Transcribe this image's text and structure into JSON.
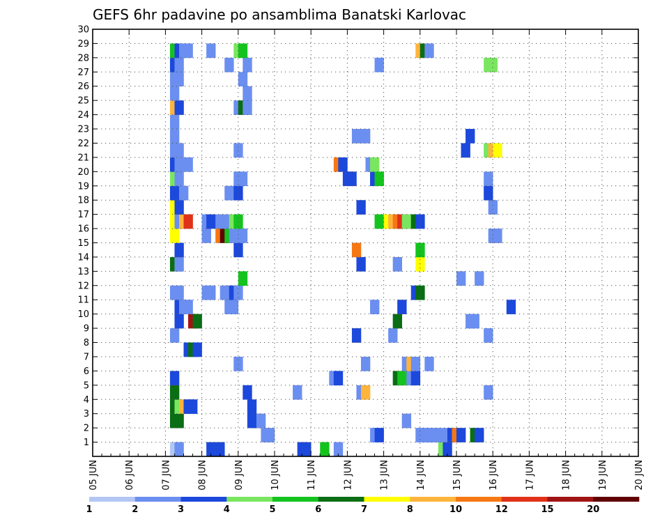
{
  "chart_data": {
    "type": "heatmap",
    "title": "GEFS 6hr padavine po ansamblima Banatski Karlovac",
    "xlabel": "",
    "ylabel": "",
    "x_ticks": [
      "05 JUN",
      "06 JUN",
      "07 JUN",
      "08 JUN",
      "09 JUN",
      "10 JUN",
      "11 JUN",
      "12 JUN",
      "13 JUN",
      "14 JUN",
      "15 JUN",
      "16 JUN",
      "17 JUN",
      "18 JUN",
      "19 JUN",
      "20 JUN"
    ],
    "xlim": [
      "05 JUN 00Z",
      "20 JUN 00Z"
    ],
    "time_step_hours": 6,
    "y_ticks": [
      "1",
      "2",
      "3",
      "4",
      "5",
      "6",
      "7",
      "8",
      "9",
      "10",
      "11",
      "12",
      "13",
      "14",
      "15",
      "16",
      "17",
      "18",
      "19",
      "20",
      "21",
      "22",
      "23",
      "24",
      "25",
      "26",
      "27",
      "28",
      "29",
      "30"
    ],
    "ylim": [
      0,
      30
    ],
    "grid": "dotted",
    "colorbar": {
      "tick_labels": [
        "1",
        "2",
        "3",
        "4",
        "5",
        "6",
        "7",
        "8",
        "10",
        "12",
        "15",
        "20"
      ],
      "bins": [
        {
          "range": "1-2",
          "color": "#b3c7f4"
        },
        {
          "range": "2-3",
          "color": "#6b8ff0"
        },
        {
          "range": "3-4",
          "color": "#1c48dc"
        },
        {
          "range": "4-5",
          "color": "#7ae660"
        },
        {
          "range": "5-6",
          "color": "#14c31e"
        },
        {
          "range": "6-7",
          "color": "#0a6e14"
        },
        {
          "range": "7-8",
          "color": "#ffff00"
        },
        {
          "range": "8-10",
          "color": "#ffb43c"
        },
        {
          "range": "10-12",
          "color": "#f57814"
        },
        {
          "range": "12-15",
          "color": "#e03218"
        },
        {
          "range": "15-20",
          "color": "#a01414"
        },
        {
          "range": "20+",
          "color": "#600000"
        }
      ]
    },
    "cells": [
      [
        0,
        17,
        0
      ],
      [
        0,
        18,
        1
      ],
      [
        0,
        25,
        2
      ],
      [
        0,
        27,
        2
      ],
      [
        0,
        45,
        2
      ],
      [
        0,
        46,
        2
      ],
      [
        0,
        50,
        4
      ],
      [
        0,
        53,
        1
      ],
      [
        0,
        76,
        3
      ],
      [
        0,
        77,
        2
      ],
      [
        1,
        37,
        1
      ],
      [
        1,
        38,
        1
      ],
      [
        1,
        61,
        1
      ],
      [
        1,
        62,
        2
      ],
      [
        1,
        71,
        1
      ],
      [
        1,
        72,
        1
      ],
      [
        1,
        73,
        1
      ],
      [
        1,
        74,
        1
      ],
      [
        1,
        75,
        1
      ],
      [
        1,
        77,
        1
      ],
      [
        1,
        78,
        2
      ],
      [
        1,
        79,
        8
      ],
      [
        1,
        80,
        2
      ],
      [
        1,
        83,
        5
      ],
      [
        1,
        84,
        2
      ],
      [
        2,
        17,
        5
      ],
      [
        2,
        18,
        5
      ],
      [
        2,
        34,
        2
      ],
      [
        2,
        35,
        2
      ],
      [
        2,
        36,
        1
      ],
      [
        2,
        68,
        1
      ],
      [
        3,
        17,
        5
      ],
      [
        3,
        18,
        3
      ],
      [
        3,
        19,
        7
      ],
      [
        3,
        20,
        2
      ],
      [
        3,
        21,
        2
      ],
      [
        3,
        34,
        2
      ],
      [
        4,
        17,
        5
      ],
      [
        4,
        33,
        2
      ],
      [
        4,
        44,
        1
      ],
      [
        4,
        58,
        1
      ],
      [
        4,
        59,
        7
      ],
      [
        4,
        86,
        1
      ],
      [
        5,
        17,
        2
      ],
      [
        5,
        52,
        1
      ],
      [
        5,
        53,
        2
      ],
      [
        5,
        66,
        5
      ],
      [
        5,
        67,
        4
      ],
      [
        5,
        69,
        1
      ],
      [
        5,
        70,
        2
      ],
      [
        6,
        31,
        1
      ],
      [
        6,
        59,
        1
      ],
      [
        6,
        68,
        1
      ],
      [
        6,
        69,
        7
      ],
      [
        6,
        70,
        1
      ],
      [
        6,
        73,
        1
      ],
      [
        7,
        20,
        2
      ],
      [
        7,
        21,
        5
      ],
      [
        7,
        22,
        2
      ],
      [
        8,
        17,
        1
      ],
      [
        8,
        57,
        2
      ],
      [
        8,
        65,
        1
      ],
      [
        8,
        86,
        1
      ],
      [
        9,
        18,
        2
      ],
      [
        9,
        21,
        10
      ],
      [
        9,
        22,
        5
      ],
      [
        9,
        66,
        5
      ],
      [
        9,
        82,
        1
      ],
      [
        9,
        83,
        1
      ],
      [
        10,
        18,
        2
      ],
      [
        10,
        19,
        1
      ],
      [
        10,
        20,
        1
      ],
      [
        10,
        29,
        1
      ],
      [
        10,
        30,
        1
      ],
      [
        10,
        61,
        1
      ],
      [
        10,
        67,
        2
      ],
      [
        10,
        91,
        2
      ],
      [
        11,
        17,
        1
      ],
      [
        11,
        18,
        1
      ],
      [
        11,
        24,
        1
      ],
      [
        11,
        25,
        1
      ],
      [
        11,
        28,
        1
      ],
      [
        11,
        29,
        1
      ],
      [
        11,
        30,
        2
      ],
      [
        11,
        31,
        1
      ],
      [
        11,
        70,
        2
      ],
      [
        11,
        71,
        5
      ],
      [
        12,
        32,
        4
      ],
      [
        12,
        80,
        1
      ],
      [
        12,
        84,
        1
      ],
      [
        13,
        17,
        5
      ],
      [
        13,
        18,
        1
      ],
      [
        13,
        58,
        2
      ],
      [
        13,
        66,
        1
      ],
      [
        13,
        71,
        6
      ],
      [
        14,
        18,
        2
      ],
      [
        14,
        31,
        2
      ],
      [
        14,
        57,
        8
      ],
      [
        14,
        71,
        4
      ],
      [
        15,
        17,
        6
      ],
      [
        15,
        24,
        1
      ],
      [
        15,
        27,
        8
      ],
      [
        15,
        28,
        11
      ],
      [
        15,
        29,
        4
      ],
      [
        15,
        30,
        1
      ],
      [
        15,
        31,
        1
      ],
      [
        15,
        32,
        1
      ],
      [
        15,
        87,
        1
      ],
      [
        15,
        88,
        1
      ],
      [
        16,
        17,
        6
      ],
      [
        16,
        18,
        1
      ],
      [
        16,
        19,
        7
      ],
      [
        16,
        20,
        9
      ],
      [
        16,
        24,
        1
      ],
      [
        16,
        25,
        2
      ],
      [
        16,
        27,
        1
      ],
      [
        16,
        28,
        1
      ],
      [
        16,
        30,
        3
      ],
      [
        16,
        31,
        4
      ],
      [
        16,
        62,
        4
      ],
      [
        16,
        64,
        6
      ],
      [
        16,
        65,
        7
      ],
      [
        16,
        66,
        8
      ],
      [
        16,
        67,
        9
      ],
      [
        16,
        68,
        3
      ],
      [
        16,
        69,
        3
      ],
      [
        16,
        70,
        5
      ],
      [
        16,
        71,
        2
      ],
      [
        17,
        17,
        6
      ],
      [
        17,
        18,
        2
      ],
      [
        17,
        58,
        2
      ],
      [
        17,
        87,
        1
      ],
      [
        18,
        17,
        2
      ],
      [
        18,
        18,
        2
      ],
      [
        18,
        19,
        1
      ],
      [
        18,
        29,
        1
      ],
      [
        18,
        31,
        2
      ],
      [
        18,
        86,
        2
      ],
      [
        19,
        17,
        3
      ],
      [
        19,
        18,
        1
      ],
      [
        19,
        31,
        1
      ],
      [
        19,
        32,
        1
      ],
      [
        19,
        55,
        2
      ],
      [
        19,
        56,
        2
      ],
      [
        19,
        61,
        2
      ],
      [
        19,
        62,
        4
      ],
      [
        19,
        86,
        1
      ],
      [
        20,
        17,
        2
      ],
      [
        20,
        18,
        1
      ],
      [
        20,
        20,
        1
      ],
      [
        20,
        53,
        8
      ],
      [
        20,
        54,
        2
      ],
      [
        20,
        60,
        1
      ],
      [
        20,
        61,
        3
      ],
      [
        21,
        17,
        1
      ],
      [
        21,
        18,
        1
      ],
      [
        21,
        31,
        1
      ],
      [
        21,
        81,
        2
      ],
      [
        21,
        86,
        3
      ],
      [
        21,
        87,
        7
      ],
      [
        21,
        88,
        6
      ],
      [
        22,
        17,
        1
      ],
      [
        22,
        57,
        1
      ],
      [
        22,
        59,
        1
      ],
      [
        22,
        82,
        2
      ],
      [
        23,
        17,
        1
      ],
      [
        24,
        17,
        7
      ],
      [
        24,
        18,
        2
      ],
      [
        24,
        31,
        1
      ],
      [
        24,
        32,
        5
      ],
      [
        24,
        33,
        1
      ],
      [
        25,
        17,
        1
      ],
      [
        25,
        33,
        1
      ],
      [
        26,
        17,
        1
      ],
      [
        26,
        18,
        1
      ],
      [
        26,
        32,
        1
      ],
      [
        27,
        17,
        2
      ],
      [
        27,
        18,
        1
      ],
      [
        27,
        29,
        1
      ],
      [
        27,
        33,
        1
      ],
      [
        27,
        62,
        1
      ],
      [
        27,
        86,
        3
      ],
      [
        27,
        87,
        3
      ],
      [
        28,
        17,
        4
      ],
      [
        28,
        18,
        2
      ],
      [
        28,
        19,
        1
      ],
      [
        28,
        20,
        1
      ],
      [
        28,
        25,
        1
      ],
      [
        28,
        31,
        3
      ],
      [
        28,
        32,
        4
      ],
      [
        28,
        71,
        7
      ],
      [
        28,
        72,
        5
      ],
      [
        28,
        73,
        1
      ]
    ]
  }
}
